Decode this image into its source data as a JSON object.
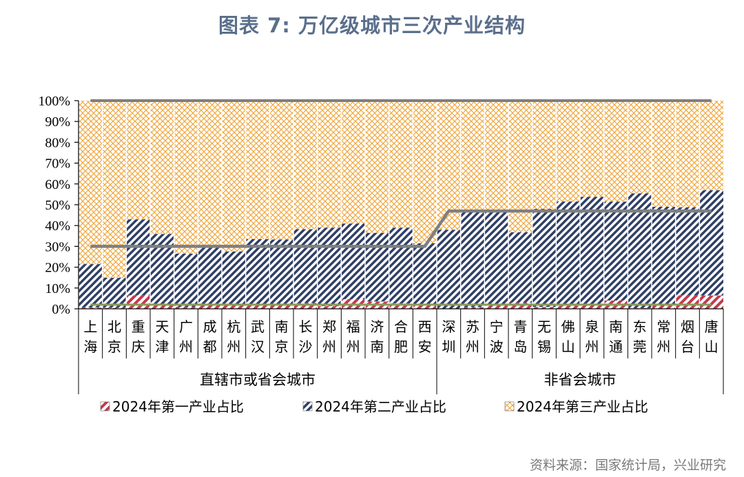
{
  "title": "图表 7: 万亿级城市三次产业结构",
  "source": "资料来源：国家统计局，兴业研究",
  "colors": {
    "primary": "#c23a4a",
    "secondary": "#2f3f66",
    "tertiary": "#f0a53a",
    "avg_line": "#7f7f7f",
    "title": "#5b6f8c"
  },
  "chart_data": {
    "type": "bar",
    "stacked": true,
    "ylim": [
      0,
      100
    ],
    "yticks": [
      "0%",
      "10%",
      "20%",
      "30%",
      "40%",
      "50%",
      "60%",
      "70%",
      "80%",
      "90%",
      "100%"
    ],
    "grid": false,
    "legend_position": "bottom",
    "categories": [
      "上海",
      "北京",
      "重庆",
      "天津",
      "广州",
      "成都",
      "杭州",
      "武汉",
      "南京",
      "长沙",
      "郑州",
      "福州",
      "济南",
      "合肥",
      "西安",
      "深圳",
      "苏州",
      "宁波",
      "青岛",
      "无锡",
      "佛山",
      "泉州",
      "南通",
      "东莞",
      "常州",
      "烟台",
      "唐山"
    ],
    "groups": [
      {
        "label": "直辖市或省会城市",
        "start": 0,
        "end": 14
      },
      {
        "label": "非省会城市",
        "start": 15,
        "end": 26
      }
    ],
    "series": [
      {
        "name": "2024年第一产业占比",
        "values": [
          0.6,
          0.4,
          6.5,
          1.5,
          1.0,
          2.5,
          1.6,
          2.0,
          1.8,
          2.8,
          1.3,
          4.6,
          3.5,
          2.6,
          2.3,
          0.1,
          0.8,
          2.2,
          3.0,
          0.9,
          1.4,
          1.6,
          4.0,
          0.3,
          1.8,
          6.5,
          6.4
        ]
      },
      {
        "name": "2024年第二产业占比",
        "values": [
          20.9,
          14.5,
          36.5,
          34.5,
          25.5,
          27.5,
          26.0,
          31.5,
          31.5,
          35.5,
          37.7,
          36.4,
          33.0,
          36.4,
          29.2,
          37.9,
          46.2,
          44.3,
          33.8,
          47.1,
          50.2,
          52.2,
          47.5,
          55.2,
          47.2,
          42.3,
          50.6
        ]
      },
      {
        "name": "2024年第三产业占比",
        "values": [
          78.5,
          85.1,
          57.0,
          64.0,
          73.5,
          70.0,
          72.4,
          66.5,
          66.7,
          61.7,
          61.0,
          59.0,
          63.5,
          61.0,
          68.5,
          62.0,
          53.0,
          53.5,
          63.2,
          52.0,
          48.4,
          46.2,
          48.5,
          44.5,
          51.0,
          51.2,
          43.0
        ]
      }
    ],
    "group_average_lines": [
      {
        "applies_to_group": 0,
        "total": 100,
        "secondary_avg": 30.0,
        "primary_avg": 2.0
      },
      {
        "applies_to_group": 1,
        "total": 100,
        "secondary_avg": 47.0,
        "primary_avg": 2.0
      }
    ]
  }
}
